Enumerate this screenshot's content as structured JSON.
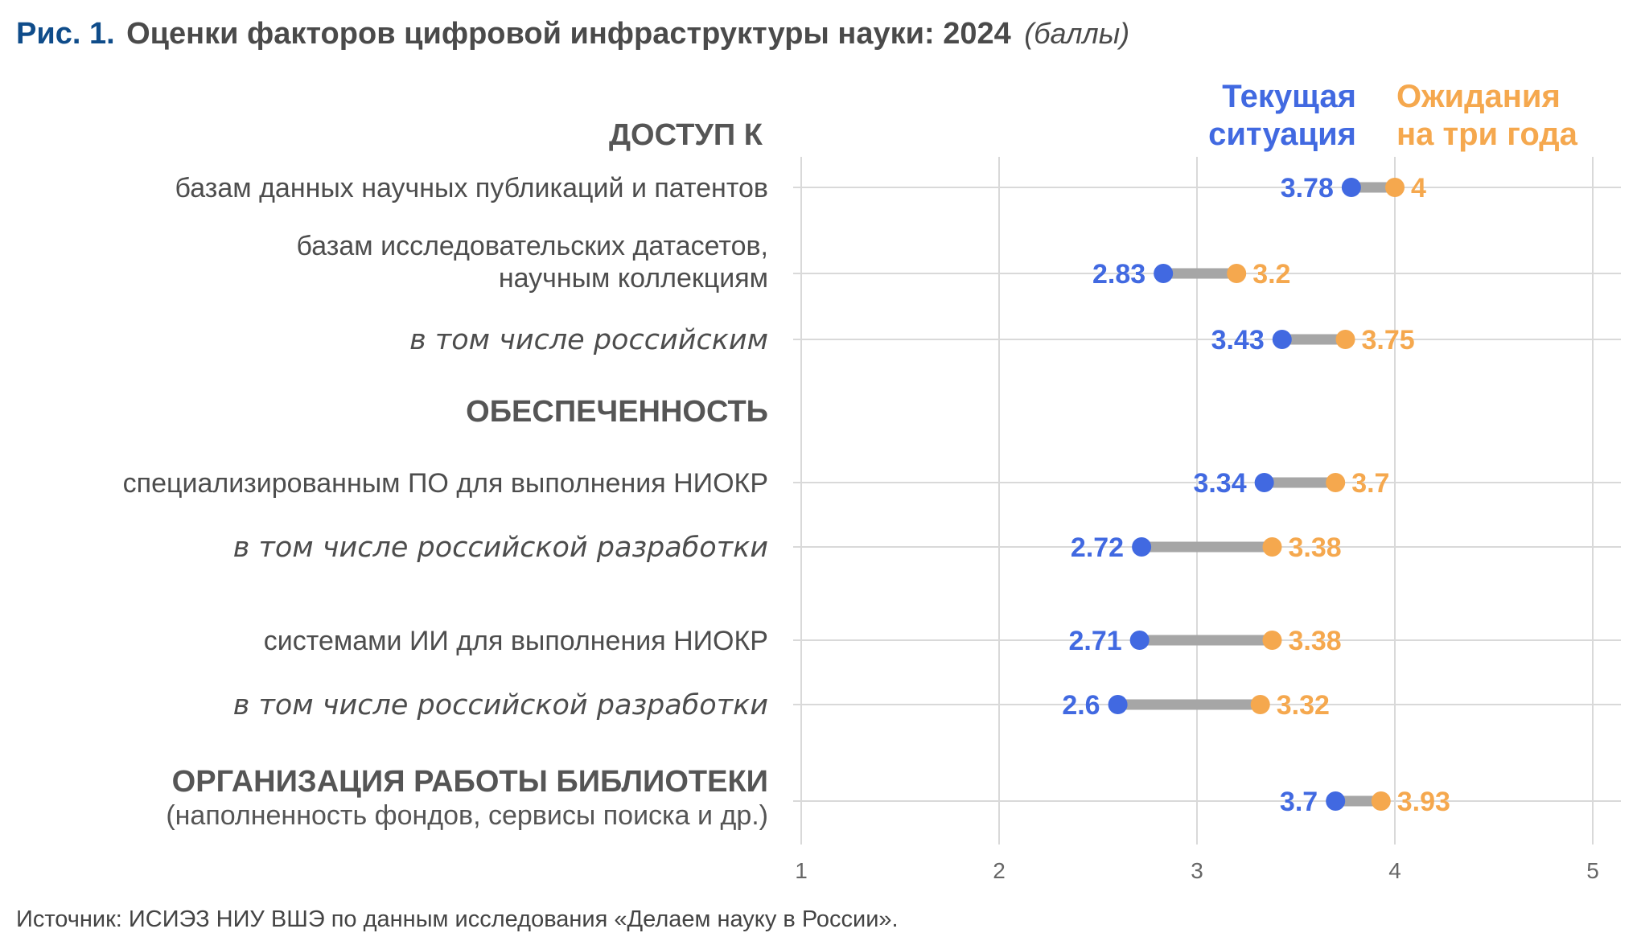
{
  "title": {
    "figure": "Рис. 1.",
    "main": "Оценки факторов цифровой инфраструктуры науки: 2024",
    "unit": "(баллы)"
  },
  "legend": {
    "current": [
      "Текущая",
      "ситуация"
    ],
    "expected": [
      "Ожидания",
      "на три года"
    ]
  },
  "colors": {
    "current": "#4169e1",
    "expected": "#f5a84e",
    "connector": "#a6a6a6",
    "grid": "#d9d9d9"
  },
  "sections": {
    "access": "ДОСТУП К",
    "provision": "ОБЕСПЕЧЕННОСТЬ",
    "library": "ОРГАНИЗАЦИЯ РАБОТЫ БИБЛИОТЕКИ",
    "library_sub": "(наполненность фондов, сервисы поиска и др.)"
  },
  "chart_data": {
    "type": "dumbbell",
    "xlim": [
      1,
      5
    ],
    "x_ticks": [
      1,
      2,
      3,
      4,
      5
    ],
    "grid": true,
    "rows": [
      {
        "label": [
          "базам данных научных публикаций и патентов"
        ],
        "italic": false,
        "current": 3.78,
        "expected": 4,
        "current_label": "3.78",
        "expected_label": "4"
      },
      {
        "label": [
          "базам исследовательских датасетов,",
          "научным коллекциям"
        ],
        "italic": false,
        "current": 2.83,
        "expected": 3.2,
        "current_label": "2.83",
        "expected_label": "3.2"
      },
      {
        "label": [
          "в том числе российским"
        ],
        "italic": true,
        "current": 3.43,
        "expected": 3.75,
        "current_label": "3.43",
        "expected_label": "3.75"
      },
      {
        "label": [
          "специализированным ПО для выполнения НИОКР"
        ],
        "italic": false,
        "current": 3.34,
        "expected": 3.7,
        "current_label": "3.34",
        "expected_label": "3.7"
      },
      {
        "label": [
          "в том числе российской разработки"
        ],
        "italic": true,
        "current": 2.72,
        "expected": 3.38,
        "current_label": "2.72",
        "expected_label": "3.38"
      },
      {
        "label": [
          "системами ИИ для выполнения НИОКР"
        ],
        "italic": false,
        "current": 2.71,
        "expected": 3.38,
        "current_label": "2.71",
        "expected_label": "3.38"
      },
      {
        "label": [
          "в том числе российской разработки"
        ],
        "italic": true,
        "current": 2.6,
        "expected": 3.32,
        "current_label": "2.6",
        "expected_label": "3.32"
      },
      {
        "label": [],
        "italic": false,
        "current": 3.7,
        "expected": 3.93,
        "current_label": "3.7",
        "expected_label": "3.93"
      }
    ]
  },
  "source": "Источник: ИСИЭЗ НИУ ВШЭ по данным исследования «Делаем науку в России»."
}
